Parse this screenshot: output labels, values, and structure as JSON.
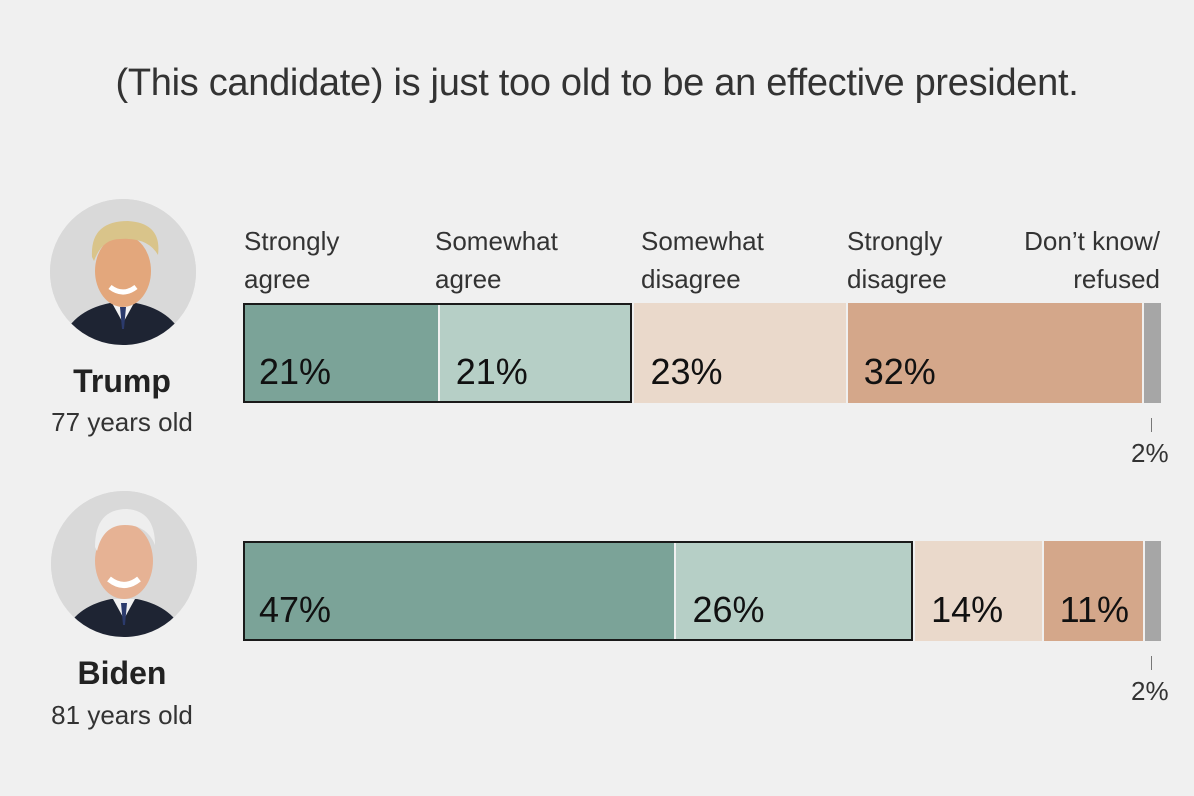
{
  "title": "(This candidate) is just too old to be an effective president.",
  "chart_data": {
    "type": "bar",
    "orientation": "horizontal",
    "stacked": true,
    "title": "(This candidate) is just too old to be an effective president.",
    "categories": [
      {
        "line1": "Strongly",
        "line2": "agree"
      },
      {
        "line1": "Somewhat",
        "line2": "agree"
      },
      {
        "line1": "Somewhat",
        "line2": "disagree"
      },
      {
        "line1": "Strongly",
        "line2": "disagree"
      },
      {
        "line1": "Don’t know/",
        "line2": "refused"
      }
    ],
    "colors": [
      "#7ba398",
      "#b6cfc6",
      "#ead9cb",
      "#d4a78a",
      "#a6a6a6"
    ],
    "rows": [
      {
        "name": "Trump",
        "age": "77 years old",
        "values": [
          21,
          21,
          23,
          32,
          2
        ],
        "labels": [
          "21%",
          "21%",
          "23%",
          "32%",
          "2%"
        ]
      },
      {
        "name": "Biden",
        "age": "81 years old",
        "values": [
          47,
          26,
          14,
          11,
          2
        ],
        "labels": [
          "47%",
          "26%",
          "14%",
          "11%",
          "2%"
        ]
      }
    ]
  }
}
